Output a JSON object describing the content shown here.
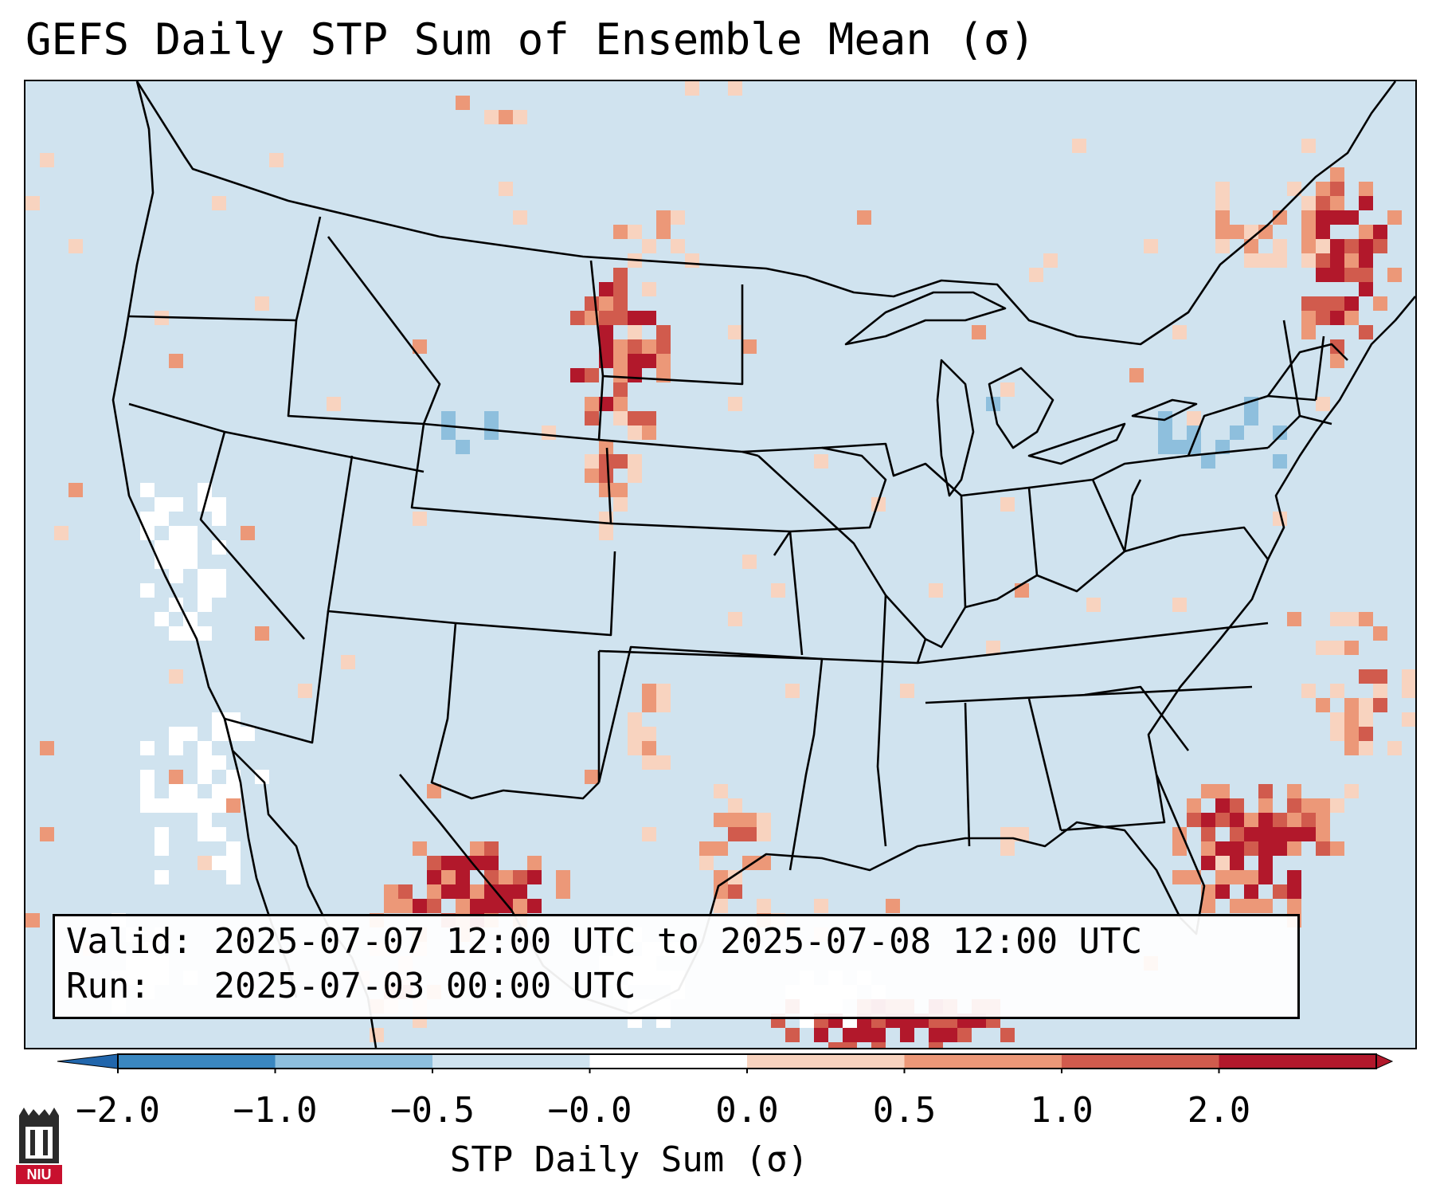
{
  "title": "GEFS Daily STP Sum of Ensemble Mean (σ)",
  "map": {
    "region": "CONUS",
    "colors": {
      "ocean_background": "#d0e3ef",
      "land_neutral": "#d0e3ef",
      "near_zero": "#ffffff",
      "borders": "#000000"
    }
  },
  "info": {
    "valid_label": "Valid:",
    "valid_value": "2025-07-07 12:00 UTC to 2025-07-08 12:00 UTC",
    "run_label": "Run:",
    "run_value": "2025-07-03 00:00 UTC"
  },
  "colorbar": {
    "label": "STP Daily Sum (σ)",
    "ticks": [
      "−2.0",
      "−1.0",
      "−0.5",
      "−0.0",
      "0.0",
      "0.5",
      "1.0",
      "2.0"
    ],
    "colors": [
      "#3a87c0",
      "#8ebfdd",
      "#d0e3ef",
      "#ffffff",
      "#f8d3bf",
      "#ec9878",
      "#d15b4d",
      "#b2182b"
    ],
    "extend_min_color": "#2166ac",
    "extend_max_color": "#b2182b"
  },
  "logo": {
    "text": "NIU",
    "icon": "university-logo-icon"
  }
}
